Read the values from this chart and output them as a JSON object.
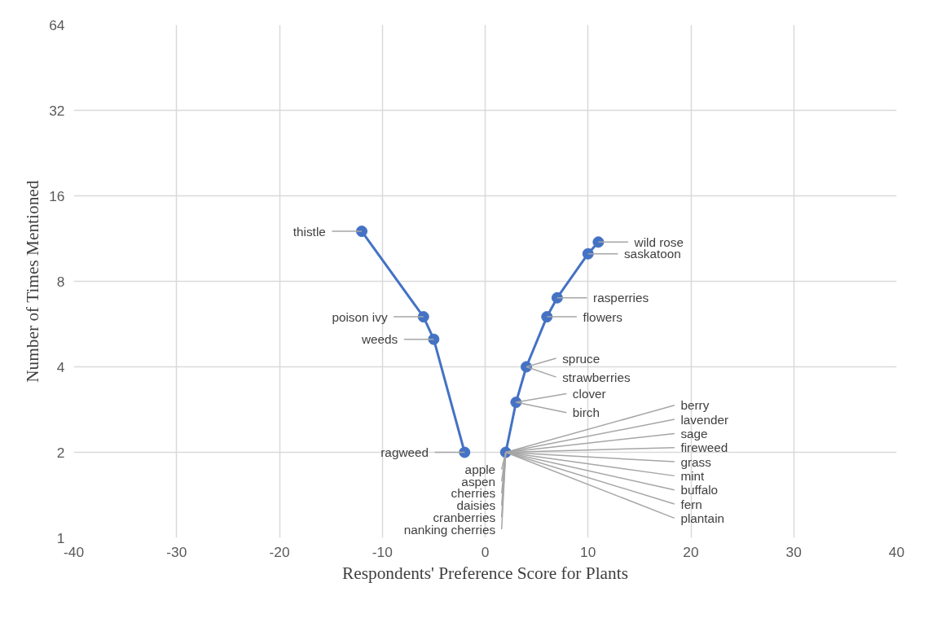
{
  "chart_data": {
    "type": "line",
    "xlabel": "Respondents' Preference Score for Plants",
    "ylabel": "Number of Times Mentioned",
    "series": [
      {
        "color": "#4472c4",
        "x": [
          -12,
          -6,
          -5,
          -2
        ],
        "values": [
          12,
          6,
          5,
          2
        ]
      },
      {
        "color": "#4472c4",
        "x": [
          2,
          3,
          4,
          6,
          7,
          10,
          11
        ],
        "values": [
          2,
          3,
          4,
          6,
          7,
          10,
          11
        ]
      }
    ],
    "xlim": [
      -40,
      40
    ],
    "xticks": [
      -40,
      -30,
      -20,
      -10,
      0,
      10,
      20,
      30,
      40
    ],
    "ylim": [
      1,
      64
    ],
    "yticks": [
      1,
      2,
      4,
      8,
      16,
      32,
      64
    ],
    "log": "y",
    "grid": true,
    "marker": "circle",
    "line_style": "solid",
    "annotations": [
      {
        "text": "thistle",
        "x": -12,
        "y": 12
      },
      {
        "text": "poison ivy",
        "x": -6,
        "y": 6
      },
      {
        "text": "weeds",
        "x": -5,
        "y": 5
      },
      {
        "text": "ragweed",
        "x": -2,
        "y": 2
      },
      {
        "text": "wild rose",
        "x": 11,
        "y": 11
      },
      {
        "text": "saskatoon",
        "x": 10,
        "y": 10
      },
      {
        "text": "rasperries",
        "x": 7,
        "y": 7
      },
      {
        "text": "flowers",
        "x": 6,
        "y": 6
      },
      {
        "text": "spruce",
        "x": 4,
        "y": 4
      },
      {
        "text": "strawberries",
        "x": 4,
        "y": 4
      },
      {
        "text": "clover",
        "x": 3,
        "y": 3
      },
      {
        "text": "birch",
        "x": 3,
        "y": 3
      },
      {
        "text": "berry",
        "x": 2,
        "y": 2
      },
      {
        "text": "lavender",
        "x": 2,
        "y": 2
      },
      {
        "text": "sage",
        "x": 2,
        "y": 2
      },
      {
        "text": "fireweed",
        "x": 2,
        "y": 2
      },
      {
        "text": "grass",
        "x": 2,
        "y": 2
      },
      {
        "text": "mint",
        "x": 2,
        "y": 2
      },
      {
        "text": "buffalo",
        "x": 2,
        "y": 2
      },
      {
        "text": "fern",
        "x": 2,
        "y": 2
      },
      {
        "text": "plantain",
        "x": 2,
        "y": 2
      },
      {
        "text": "apple",
        "x": 2,
        "y": 2
      },
      {
        "text": "aspen",
        "x": 2,
        "y": 2
      },
      {
        "text": "cherries",
        "x": 2,
        "y": 2
      },
      {
        "text": "daisies",
        "x": 2,
        "y": 2
      },
      {
        "text": "cranberries",
        "x": 2,
        "y": 2
      },
      {
        "text": "nanking cherries",
        "x": 2,
        "y": 2
      }
    ]
  }
}
